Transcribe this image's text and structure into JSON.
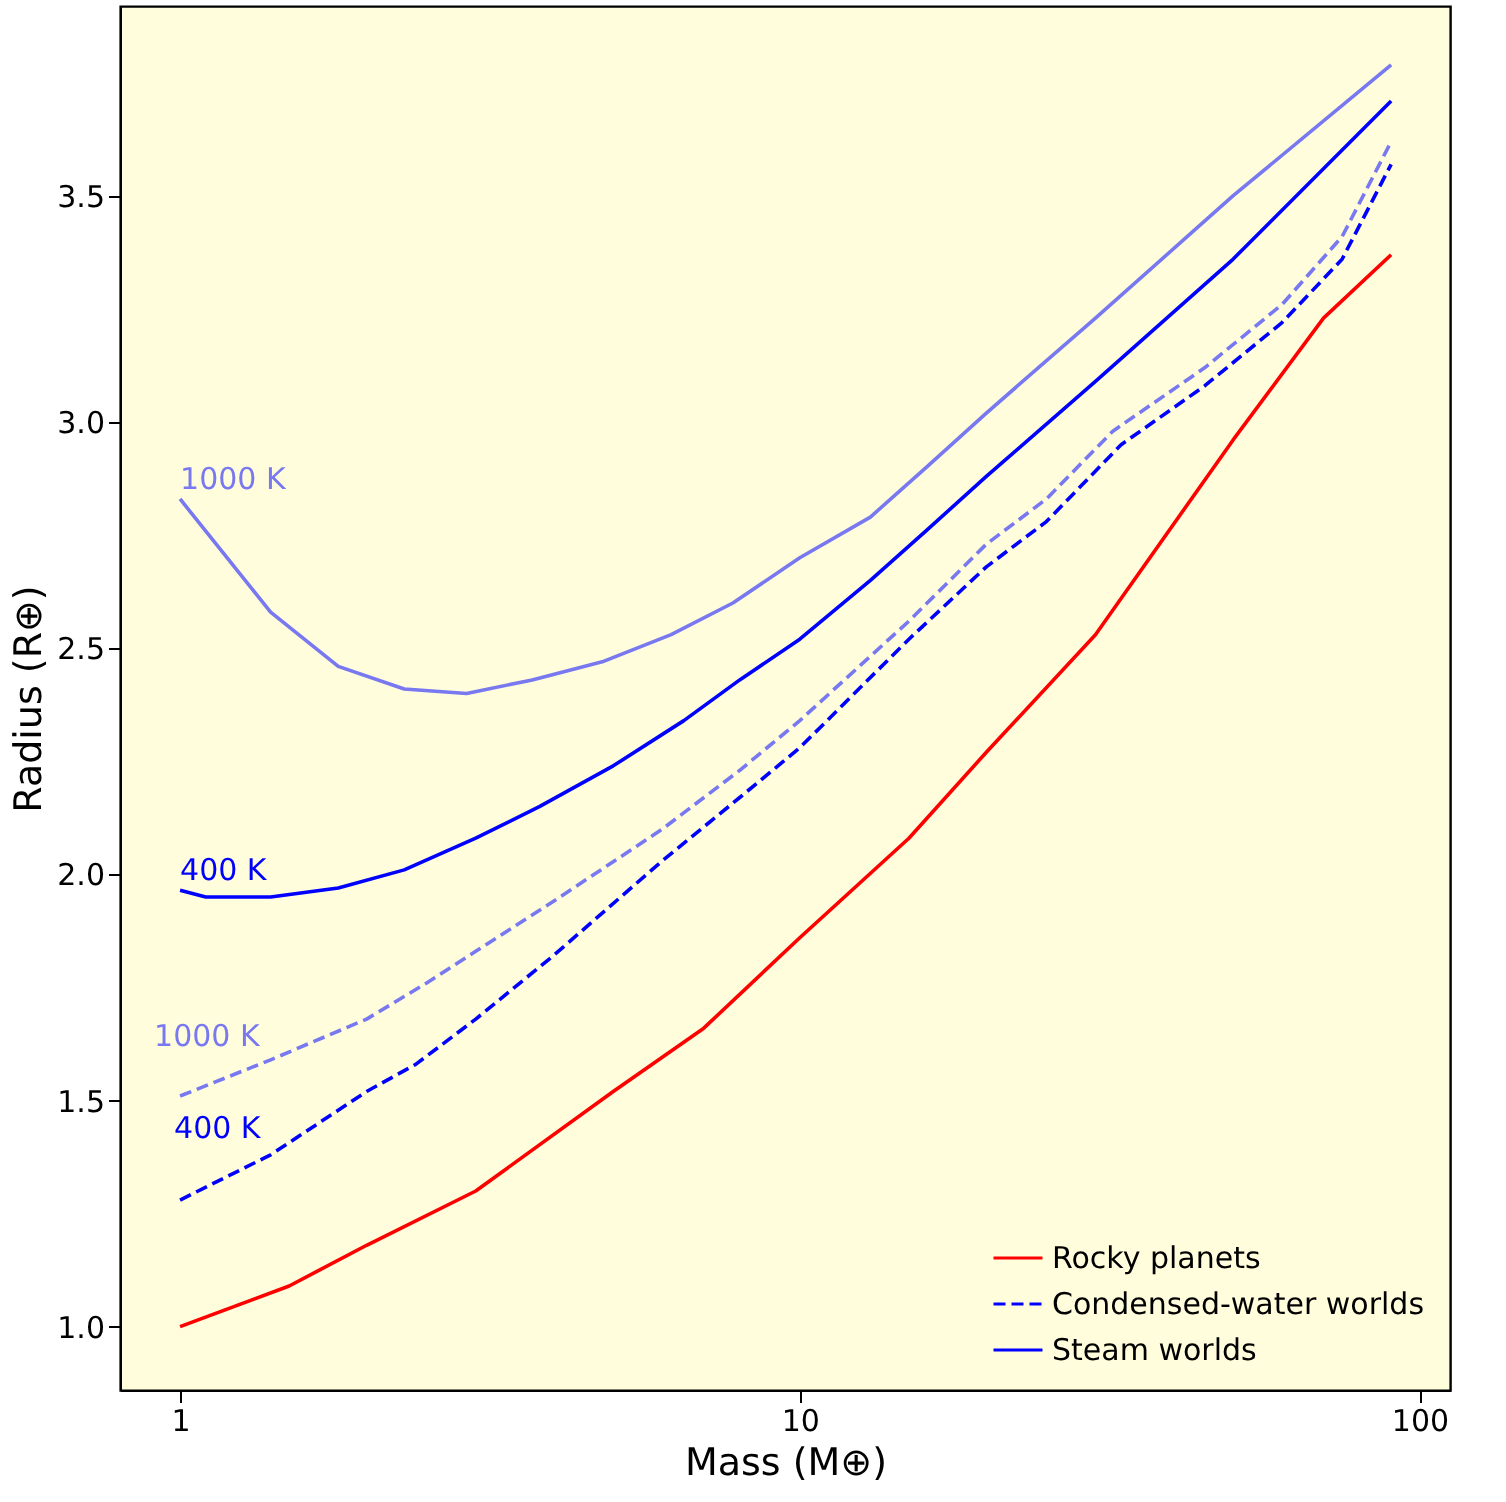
{
  "chart_data": {
    "type": "line",
    "xlabel": "Mass (M⊕)",
    "ylabel": "Radius (R⊕)",
    "log": "x",
    "xlim": [
      0.8,
      112
    ],
    "xticks": [
      1,
      10,
      100
    ],
    "ylim": [
      0.86,
      3.92
    ],
    "yticks": [
      {
        "value": 1.0,
        "label": "1.0"
      },
      {
        "value": 1.5,
        "label": "1.5"
      },
      {
        "value": 2.0,
        "label": "2.0"
      },
      {
        "value": 2.5,
        "label": "2.5"
      },
      {
        "value": 3.0,
        "label": "3.0"
      },
      {
        "value": 3.5,
        "label": "3.5"
      }
    ],
    "grid": false,
    "legend": "bottom right",
    "series": [
      {
        "name": "Rocky planets",
        "color": "#ff0000",
        "line_style": "solid",
        "x": [
          1,
          1.5,
          2,
          3,
          5,
          7,
          10,
          15,
          20,
          30,
          50,
          70,
          90
        ],
        "values": [
          1.0,
          1.09,
          1.18,
          1.3,
          1.52,
          1.66,
          1.86,
          2.08,
          2.27,
          2.53,
          2.96,
          3.23,
          3.37
        ]
      },
      {
        "name": "Condensed-water worlds",
        "color": "#0000ff",
        "line_style": "dashed",
        "x": [
          1,
          1.4,
          2,
          2.4,
          3,
          4,
          6,
          8,
          10,
          15,
          20,
          25,
          33,
          45,
          60,
          75,
          90
        ],
        "values": [
          1.28,
          1.38,
          1.52,
          1.58,
          1.68,
          1.82,
          2.03,
          2.17,
          2.28,
          2.52,
          2.68,
          2.78,
          2.95,
          3.08,
          3.22,
          3.36,
          3.57
        ]
      },
      {
        "color": "#7878f0",
        "line_style": "dashed",
        "x": [
          1,
          1.4,
          2,
          2.5,
          3,
          4,
          6,
          8,
          10,
          15,
          20,
          25,
          32,
          45,
          60,
          75,
          90
        ],
        "values": [
          1.51,
          1.59,
          1.68,
          1.76,
          1.83,
          1.94,
          2.1,
          2.23,
          2.34,
          2.56,
          2.73,
          2.83,
          2.98,
          3.12,
          3.26,
          3.41,
          3.62
        ]
      },
      {
        "name": "Steam worlds",
        "color": "#0000ff",
        "line_style": "solid",
        "x": [
          1,
          1.1,
          1.4,
          1.8,
          2.3,
          3,
          3.8,
          5,
          6.5,
          8,
          10,
          13,
          16,
          20,
          30,
          50,
          90
        ],
        "values": [
          1.965,
          1.95,
          1.95,
          1.97,
          2.01,
          2.08,
          2.15,
          2.24,
          2.34,
          2.43,
          2.52,
          2.65,
          2.76,
          2.88,
          3.09,
          3.36,
          3.71
        ]
      },
      {
        "color": "#7878f0",
        "line_style": "solid",
        "x": [
          1,
          1.4,
          1.8,
          2.3,
          2.9,
          3.7,
          4.8,
          6.2,
          7.8,
          10,
          13,
          16,
          20,
          30,
          50,
          90
        ],
        "values": [
          2.83,
          2.58,
          2.46,
          2.41,
          2.4,
          2.43,
          2.47,
          2.53,
          2.6,
          2.7,
          2.79,
          2.9,
          3.02,
          3.23,
          3.5,
          3.79
        ]
      }
    ],
    "annotations": [
      "1000 K",
      "400 K",
      "1000 K",
      "400 K"
    ]
  }
}
